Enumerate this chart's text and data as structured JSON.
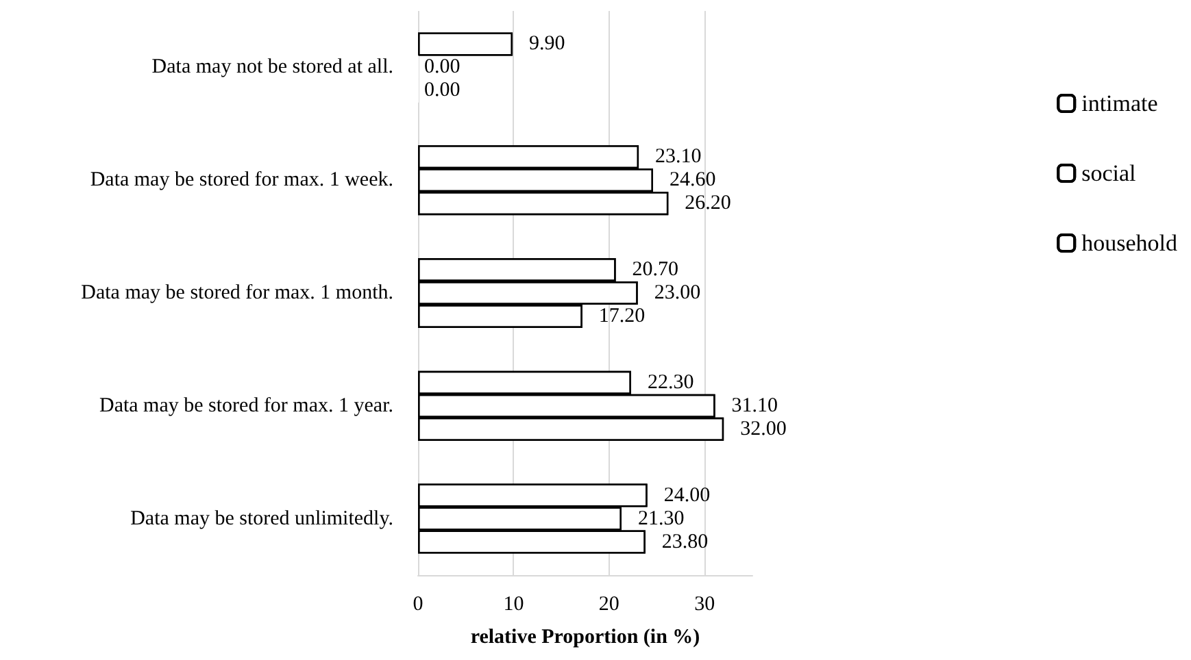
{
  "chart_data": {
    "type": "bar",
    "orientation": "horizontal",
    "xlabel": "relative Proportion (in %)",
    "categories": [
      "Data may not be stored at all.",
      "Data may be stored for max. 1 week.",
      "Data may be stored for max. 1 month.",
      "Data may be stored for max. 1 year.",
      "Data may be stored unlimitedly."
    ],
    "series": [
      {
        "name": "intimate",
        "color": "#ffffff",
        "values": [
          9.9,
          23.1,
          20.7,
          22.3,
          24.0
        ],
        "value_labels": [
          "9.90",
          "23.10",
          "20.70",
          "22.30",
          "24.00"
        ]
      },
      {
        "name": "social",
        "color": "#ffffff",
        "values": [
          0,
          24.6,
          23.0,
          31.1,
          21.3
        ],
        "value_labels": [
          "0.00",
          "24.60",
          "23.00",
          "31.10",
          "21.30"
        ]
      },
      {
        "name": "household",
        "color": "#ffffff",
        "values": [
          0,
          26.2,
          17.2,
          32.0,
          23.8
        ],
        "value_labels": [
          "0.00",
          "26.20",
          "17.20",
          "32.00",
          "23.80"
        ]
      }
    ],
    "xlim": [
      0,
      35
    ],
    "xticks": [
      0,
      10,
      20,
      30
    ],
    "grid": "x",
    "legend": "right"
  }
}
